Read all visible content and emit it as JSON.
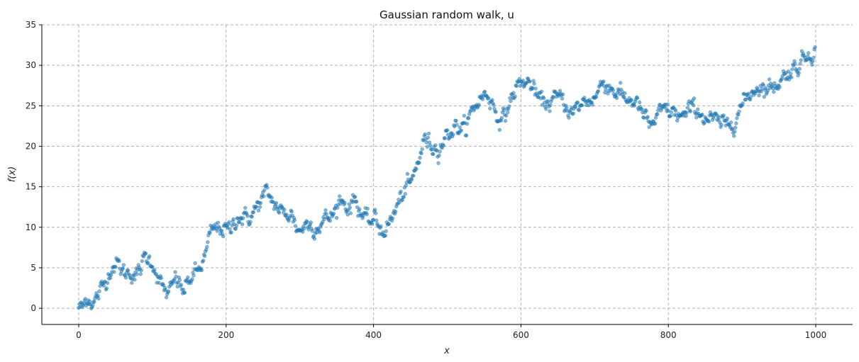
{
  "chart_data": {
    "type": "scatter",
    "title": "Gaussian random walk, u",
    "xlabel": "x",
    "ylabel": "f(x)",
    "xlim": [
      -50,
      1050
    ],
    "ylim": [
      -2,
      35
    ],
    "xticks": [
      0,
      200,
      400,
      600,
      800,
      1000
    ],
    "yticks": [
      0,
      5,
      10,
      15,
      20,
      25,
      30,
      35
    ],
    "grid": true,
    "legend": "none",
    "point_color": "#1f77b4",
    "point_alpha": 0.55,
    "n_points": 1000,
    "control_points": [
      [
        0,
        0.2
      ],
      [
        5,
        0.0
      ],
      [
        12,
        1.5
      ],
      [
        20,
        0.6
      ],
      [
        26,
        1.5
      ],
      [
        35,
        3.0
      ],
      [
        44,
        5.2
      ],
      [
        52,
        5.5
      ],
      [
        62,
        4.3
      ],
      [
        72,
        4.5
      ],
      [
        80,
        4.0
      ],
      [
        90,
        6.3
      ],
      [
        100,
        5.8
      ],
      [
        112,
        2.8
      ],
      [
        122,
        1.5
      ],
      [
        132,
        3.8
      ],
      [
        142,
        2.0
      ],
      [
        152,
        3.8
      ],
      [
        162,
        4.5
      ],
      [
        172,
        6.5
      ],
      [
        180,
        9.5
      ],
      [
        192,
        10.0
      ],
      [
        205,
        9.5
      ],
      [
        215,
        11.5
      ],
      [
        225,
        11.0
      ],
      [
        235,
        11.5
      ],
      [
        245,
        13.0
      ],
      [
        255,
        14.2
      ],
      [
        265,
        13.0
      ],
      [
        278,
        11.5
      ],
      [
        288,
        11.8
      ],
      [
        298,
        9.5
      ],
      [
        310,
        10.5
      ],
      [
        322,
        10.0
      ],
      [
        335,
        11.0
      ],
      [
        345,
        11.5
      ],
      [
        355,
        13.5
      ],
      [
        365,
        12.5
      ],
      [
        375,
        13.5
      ],
      [
        385,
        11.5
      ],
      [
        392,
        10.5
      ],
      [
        402,
        11.0
      ],
      [
        412,
        9.5
      ],
      [
        422,
        10.5
      ],
      [
        432,
        12.5
      ],
      [
        442,
        14.5
      ],
      [
        452,
        15.5
      ],
      [
        460,
        18.0
      ],
      [
        470,
        21.0
      ],
      [
        480,
        20.0
      ],
      [
        490,
        20.0
      ],
      [
        500,
        21.5
      ],
      [
        512,
        22.5
      ],
      [
        522,
        22.0
      ],
      [
        535,
        24.5
      ],
      [
        545,
        26.0
      ],
      [
        555,
        26.5
      ],
      [
        565,
        24.5
      ],
      [
        575,
        23.0
      ],
      [
        585,
        25.5
      ],
      [
        595,
        27.5
      ],
      [
        605,
        28.0
      ],
      [
        615,
        27.5
      ],
      [
        625,
        25.5
      ],
      [
        640,
        25.5
      ],
      [
        655,
        26.0
      ],
      [
        670,
        24.0
      ],
      [
        685,
        25.5
      ],
      [
        700,
        26.0
      ],
      [
        712,
        28.0
      ],
      [
        725,
        27.0
      ],
      [
        740,
        26.0
      ],
      [
        755,
        25.5
      ],
      [
        765,
        24.0
      ],
      [
        775,
        22.5
      ],
      [
        785,
        23.5
      ],
      [
        795,
        24.5
      ],
      [
        810,
        24.0
      ],
      [
        822,
        23.5
      ],
      [
        835,
        25.0
      ],
      [
        850,
        23.5
      ],
      [
        865,
        23.0
      ],
      [
        878,
        22.5
      ],
      [
        890,
        23.5
      ],
      [
        900,
        25.0
      ],
      [
        910,
        26.5
      ],
      [
        922,
        27.5
      ],
      [
        935,
        27.0
      ],
      [
        950,
        28.0
      ],
      [
        960,
        29.0
      ],
      [
        970,
        29.5
      ],
      [
        980,
        30.5
      ],
      [
        990,
        31.5
      ],
      [
        999,
        32.0
      ]
    ]
  }
}
